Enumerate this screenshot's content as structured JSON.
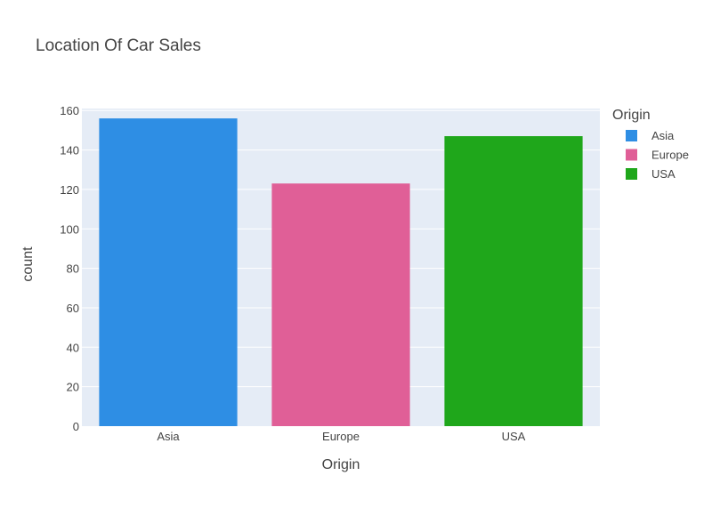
{
  "chart_data": {
    "type": "bar",
    "title": "Location Of Car Sales",
    "xlabel": "Origin",
    "ylabel": "count",
    "categories": [
      "Asia",
      "Europe",
      "USA"
    ],
    "values": [
      156,
      123,
      147
    ],
    "colors": [
      "#2e8ee4",
      "#e05f97",
      "#1fa71b"
    ],
    "ylim": [
      0,
      161
    ],
    "yticks": [
      0,
      20,
      40,
      60,
      80,
      100,
      120,
      140,
      160
    ],
    "grid": true,
    "legend": {
      "title": "Origin",
      "placement": "top-right",
      "entries": [
        "Asia",
        "Europe",
        "USA"
      ]
    }
  }
}
